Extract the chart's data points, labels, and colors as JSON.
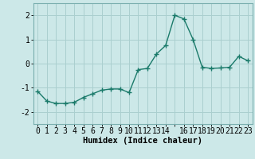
{
  "x": [
    0,
    1,
    2,
    3,
    4,
    5,
    6,
    7,
    8,
    9,
    10,
    11,
    12,
    13,
    14,
    15,
    16,
    17,
    18,
    19,
    20,
    21,
    22,
    23
  ],
  "y": [
    -1.15,
    -1.55,
    -1.65,
    -1.65,
    -1.6,
    -1.4,
    -1.25,
    -1.1,
    -1.05,
    -1.05,
    -1.2,
    -0.25,
    -0.2,
    0.4,
    0.75,
    2.0,
    1.85,
    1.0,
    -0.15,
    -0.2,
    -0.18,
    -0.15,
    0.3,
    0.12
  ],
  "line_color": "#1a7a6a",
  "marker": "+",
  "markersize": 4,
  "linewidth": 1.0,
  "bg_color": "#cce8e8",
  "grid_color": "#aacfcf",
  "xlabel": "Humidex (Indice chaleur)",
  "xlim": [
    -0.5,
    23.5
  ],
  "ylim": [
    -2.5,
    2.5
  ],
  "yticks": [
    -2,
    -1,
    0,
    1,
    2
  ],
  "xtick_labels": [
    "0",
    "1",
    "2",
    "3",
    "4",
    "5",
    "6",
    "7",
    "8",
    "9",
    "10",
    "11",
    "12",
    "13",
    "14",
    "",
    "16",
    "17",
    "18",
    "19",
    "20",
    "21",
    "22",
    "23"
  ],
  "xlabel_fontsize": 7.5,
  "tick_fontsize": 7,
  "ylabel_fontsize": 7
}
